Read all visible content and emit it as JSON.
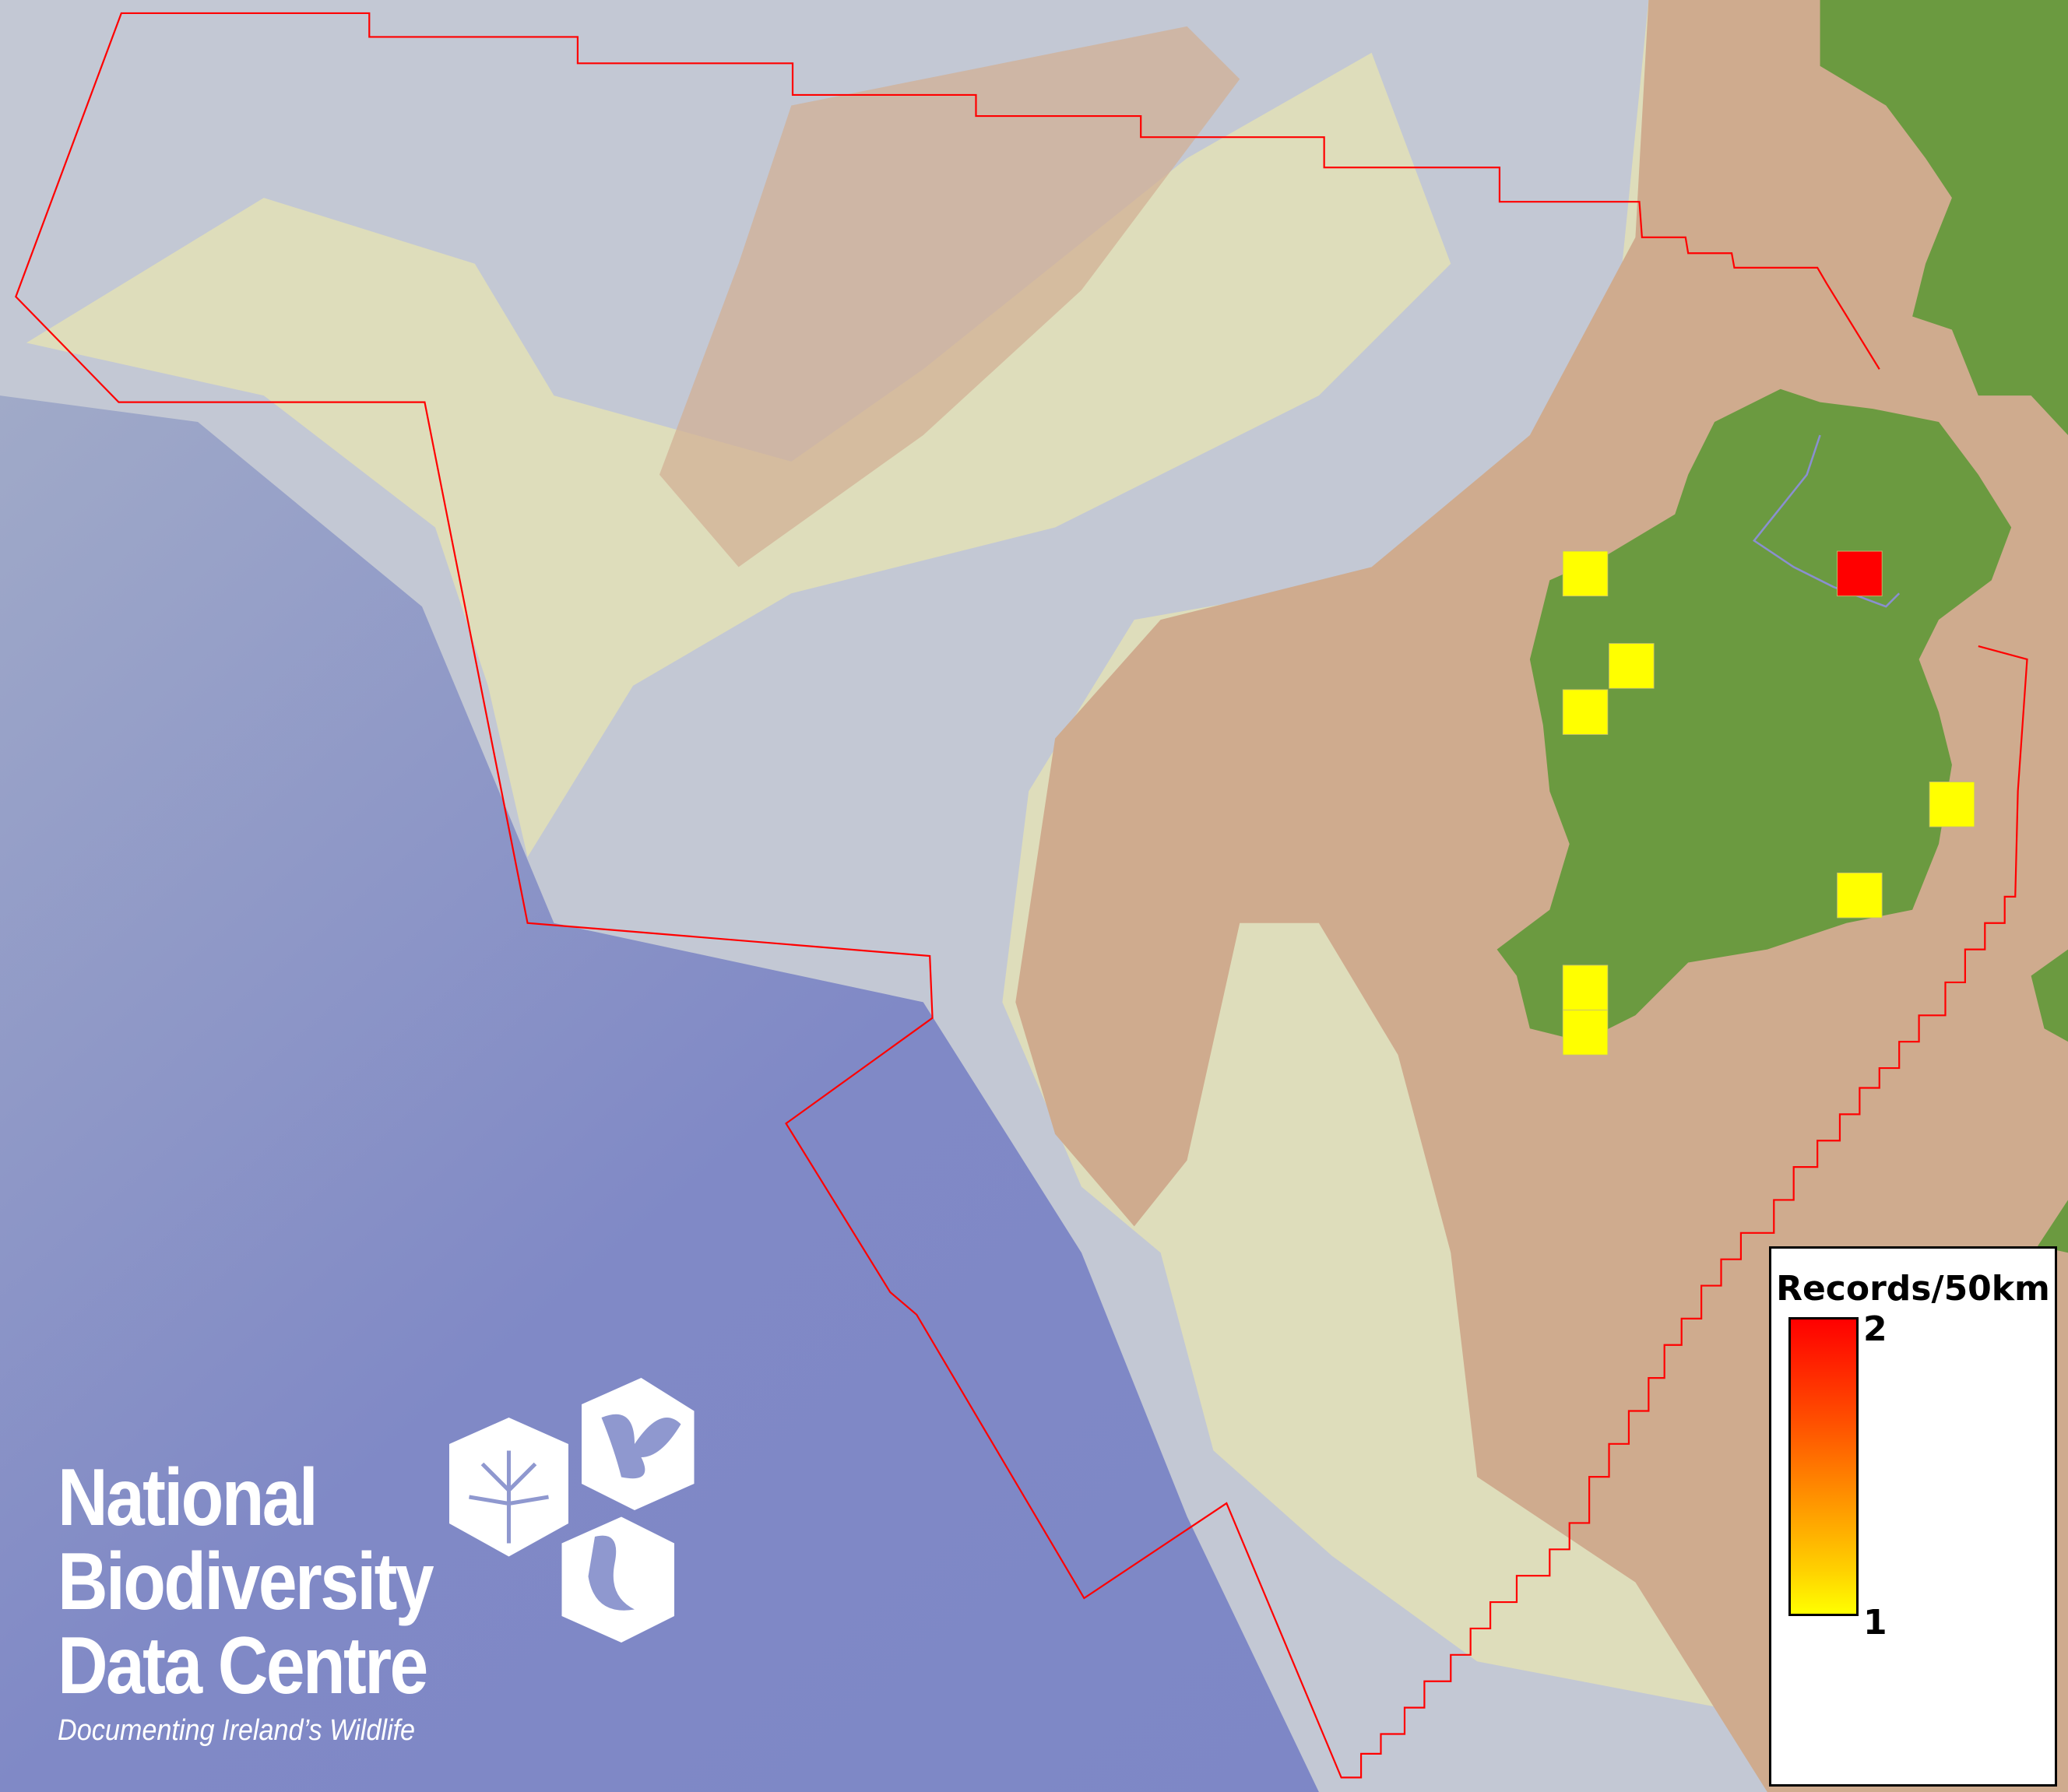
{
  "map": {
    "colors": {
      "deep_ocean": "#7f88c4",
      "slope": "#c8cbd2",
      "shelf_shallow": "#e4e0b4",
      "continental_shelf": "#cfaa8c",
      "land": "#6a9a40",
      "boundary": "#ff0000"
    },
    "records": [
      1,
      2,
      1,
      1,
      1,
      1,
      1,
      1
    ]
  },
  "legend": {
    "title": "Records/50km",
    "max_label": "2",
    "min_label": "1",
    "color_max": "#ff0000",
    "color_min": "#ffff00"
  },
  "logo": {
    "line1": "National",
    "line2": "Biodiversity",
    "line3": "Data Centre",
    "tagline": "Documenting Ireland’s Wildlife",
    "icons": [
      "tree-icon",
      "butterfly-icon",
      "seahorse-icon"
    ]
  }
}
